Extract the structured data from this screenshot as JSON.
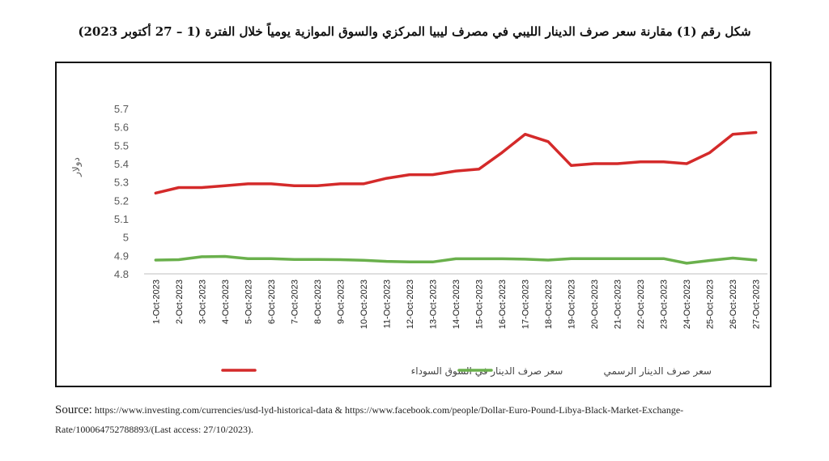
{
  "chart_data": {
    "type": "line",
    "title": "شكل رقم (1) مقارنة سعر صرف الدينار الليبي في مصرف ليبيا المركزي والسوق الموازية يومياً خلال الفترة (1 – 27 أكتوبر 2023)",
    "ylabel": "دولار",
    "xlabel": "",
    "ylim": [
      4.8,
      5.7
    ],
    "yticks": [
      4.8,
      4.9,
      5,
      5.1,
      5.2,
      5.3,
      5.4,
      5.5,
      5.6,
      5.7
    ],
    "grid": false,
    "legend": "bottom",
    "categories": [
      "1-Oct-2023",
      "2-Oct-2023",
      "3-Oct-2023",
      "4-Oct-2023",
      "5-Oct-2023",
      "6-Oct-2023",
      "7-Oct-2023",
      "8-Oct-2023",
      "9-Oct-2023",
      "10-Oct-2023",
      "11-Oct-2023",
      "12-Oct-2023",
      "13-Oct-2023",
      "14-Oct-2023",
      "15-Oct-2023",
      "16-Oct-2023",
      "17-Oct-2023",
      "18-Oct-2023",
      "19-Oct-2023",
      "20-Oct-2023",
      "21-Oct-2023",
      "22-Oct-2023",
      "23-Oct-2023",
      "24-Oct-2023",
      "25-Oct-2023",
      "26-Oct-2023",
      "27-Oct-2023"
    ],
    "series": [
      {
        "name": "سعر صرف الدينار في السوق السوداء",
        "color": "#d42a2a",
        "values": [
          5.24,
          5.27,
          5.27,
          5.28,
          5.29,
          5.29,
          5.28,
          5.28,
          5.29,
          5.29,
          5.32,
          5.34,
          5.34,
          5.36,
          5.37,
          5.46,
          5.56,
          5.52,
          5.39,
          5.4,
          5.4,
          5.41,
          5.41,
          5.4,
          5.46,
          5.56,
          5.57
        ]
      },
      {
        "name": "سعر صرف الدينار الرسمي",
        "color": "#6ab04c",
        "values": [
          4.875,
          4.877,
          4.893,
          4.895,
          4.883,
          4.883,
          4.878,
          4.878,
          4.877,
          4.874,
          4.868,
          4.865,
          4.865,
          4.882,
          4.882,
          4.882,
          4.88,
          4.875,
          4.883,
          4.883,
          4.883,
          4.883,
          4.883,
          4.858,
          4.873,
          4.886,
          4.875
        ]
      }
    ]
  },
  "source": {
    "label": "Source:",
    "text": "https://www.investing.com/currencies/usd-lyd-historical-data & https://www.facebook.com/people/Dollar-Euro-Pound-Libya-Black-Market-Exchange-Rate/100064752788893/(Last access: 27/10/2023)."
  }
}
